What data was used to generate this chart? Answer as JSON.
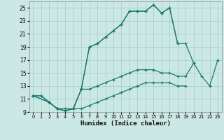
{
  "title": "",
  "xlabel": "Humidex (Indice chaleur)",
  "xlim": [
    -0.5,
    23.5
  ],
  "ylim": [
    9,
    26
  ],
  "xticks": [
    0,
    1,
    2,
    3,
    4,
    5,
    6,
    7,
    8,
    9,
    10,
    11,
    12,
    13,
    14,
    15,
    16,
    17,
    18,
    19,
    20,
    21,
    22,
    23
  ],
  "yticks": [
    9,
    11,
    13,
    15,
    17,
    19,
    21,
    23,
    25
  ],
  "bg_color": "#cce8e4",
  "line_color": "#1a7a6e",
  "grid_color": "#aacfca",
  "lines": [
    {
      "x": [
        0,
        1,
        2,
        3,
        4,
        5,
        6,
        7,
        8,
        9,
        10,
        11,
        12,
        13,
        14,
        15,
        16,
        17,
        18
      ],
      "y": [
        11.5,
        11.5,
        10.5,
        9.5,
        9.2,
        9.5,
        12.5,
        19.0,
        19.5,
        20.5,
        21.5,
        22.5,
        24.5,
        24.5,
        24.5,
        25.5,
        24.2,
        25.0,
        19.5
      ]
    },
    {
      "x": [
        0,
        1,
        2,
        3,
        4,
        5,
        6,
        7,
        8,
        9,
        10,
        11,
        12,
        13,
        14,
        15,
        16,
        17,
        18,
        19,
        20,
        21,
        22,
        23
      ],
      "y": [
        11.5,
        11.5,
        10.5,
        9.5,
        9.2,
        9.5,
        12.5,
        19.0,
        19.5,
        20.5,
        21.5,
        22.5,
        24.5,
        24.5,
        24.5,
        25.5,
        24.2,
        25.0,
        19.5,
        19.5,
        16.5,
        14.5,
        13.0,
        17.0
      ]
    },
    {
      "x": [
        0,
        2,
        3,
        4,
        5,
        6,
        7,
        8,
        9,
        10,
        11,
        12,
        13,
        14,
        15,
        16,
        17,
        18,
        19,
        20
      ],
      "y": [
        11.5,
        10.5,
        9.5,
        9.2,
        9.5,
        12.5,
        12.5,
        13.0,
        13.5,
        14.0,
        14.5,
        15.0,
        15.5,
        15.5,
        15.5,
        15.0,
        15.0,
        14.5,
        14.5,
        16.5
      ]
    },
    {
      "x": [
        0,
        2,
        3,
        4,
        5,
        6,
        7,
        8,
        9,
        10,
        11,
        12,
        13,
        14,
        15,
        16,
        17,
        18,
        19
      ],
      "y": [
        11.5,
        10.5,
        9.5,
        9.5,
        9.5,
        9.5,
        10.0,
        10.5,
        11.0,
        11.5,
        12.0,
        12.5,
        13.0,
        13.5,
        13.5,
        13.5,
        13.5,
        13.0,
        13.0
      ]
    }
  ]
}
